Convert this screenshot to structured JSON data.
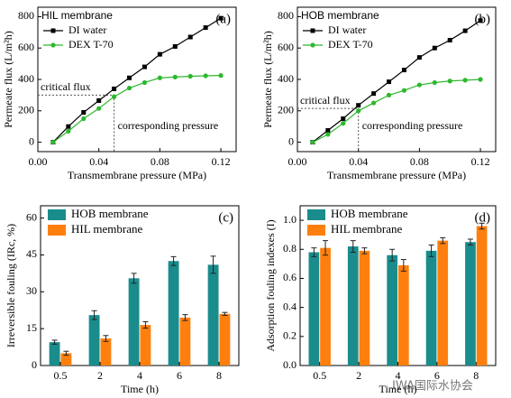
{
  "chart_data": [
    {
      "type": "line",
      "title": "HIL membrane",
      "panel_label": "(a)",
      "x_label": "Transmembrane pressure (MPa)",
      "y_label": "Permeate flux (L/m²h)",
      "x": [
        0.01,
        0.02,
        0.03,
        0.04,
        0.05,
        0.06,
        0.07,
        0.08,
        0.09,
        0.1,
        0.11,
        0.12
      ],
      "series": [
        {
          "name": "DI water",
          "color": "#000000",
          "marker": "square",
          "values": [
            0,
            100,
            190,
            265,
            340,
            410,
            480,
            560,
            610,
            670,
            730,
            790
          ]
        },
        {
          "name": "DEX T-70",
          "color": "#2db82d",
          "marker": "circle",
          "values": [
            0,
            70,
            150,
            215,
            290,
            345,
            380,
            410,
            415,
            420,
            423,
            425
          ]
        }
      ],
      "critical_point": [
        0.05,
        300
      ],
      "annotations": [
        "critical flux",
        "corresponding pressure"
      ],
      "xlim": [
        0,
        0.13
      ],
      "xticks": [
        {
          "value": 0,
          "label": "0.00"
        },
        {
          "value": 0.04,
          "label": "0.04"
        },
        {
          "value": 0.08,
          "label": "0.08"
        },
        {
          "value": 0.12,
          "label": "0.12"
        }
      ],
      "ylim": [
        -60,
        860
      ],
      "yticks": [
        0,
        200,
        400,
        600,
        800
      ]
    },
    {
      "type": "line",
      "title": "HOB membrane",
      "panel_label": "(b)",
      "x_label": "Transmembrane pressure (MPa)",
      "y_label": "Permeate flux (L/m²h)",
      "x": [
        0.01,
        0.02,
        0.03,
        0.04,
        0.05,
        0.06,
        0.07,
        0.08,
        0.09,
        0.1,
        0.11,
        0.12
      ],
      "series": [
        {
          "name": "DI water",
          "color": "#000000",
          "marker": "square",
          "values": [
            0,
            75,
            150,
            235,
            310,
            385,
            460,
            540,
            600,
            650,
            710,
            775
          ]
        },
        {
          "name": "DEX T-70",
          "color": "#2db82d",
          "marker": "circle",
          "values": [
            0,
            50,
            120,
            200,
            250,
            300,
            330,
            365,
            380,
            390,
            395,
            400
          ]
        }
      ],
      "critical_point": [
        0.04,
        215
      ],
      "annotations": [
        "critical flux",
        "corresponding pressure"
      ],
      "xlim": [
        0,
        0.13
      ],
      "xticks": [
        {
          "value": 0,
          "label": "0.00"
        },
        {
          "value": 0.04,
          "label": "0.04"
        },
        {
          "value": 0.08,
          "label": "0.08"
        },
        {
          "value": 0.12,
          "label": "0.12"
        }
      ],
      "ylim": [
        -60,
        860
      ],
      "yticks": [
        0,
        200,
        400,
        600,
        800
      ]
    },
    {
      "type": "bar",
      "panel_label": "(c)",
      "x_label": "Time (h)",
      "y_label": "Irreversible fouling (IRc, %)",
      "categories": [
        "0.5",
        "2",
        "4",
        "6",
        "8"
      ],
      "series": [
        {
          "name": "HOB membrane",
          "color": "#1a8c8c",
          "values": [
            9.5,
            20.5,
            35.5,
            42.5,
            41
          ],
          "errors": [
            0.8,
            1.8,
            2,
            1.8,
            3.5
          ]
        },
        {
          "name": "HIL membrane",
          "color": "#ff7f0e",
          "values": [
            5,
            11,
            16.5,
            19.5,
            21
          ],
          "errors": [
            0.8,
            1.2,
            1.3,
            1.2,
            0.6
          ]
        }
      ],
      "ylim": [
        0,
        65
      ],
      "yticks": [
        0,
        15,
        30,
        45,
        60
      ]
    },
    {
      "type": "bar",
      "panel_label": "(d)",
      "x_label": "Time (h)",
      "y_label": "Adsorption fouling indexes (I)",
      "categories": [
        "0.5",
        "2",
        "4",
        "6",
        "8"
      ],
      "series": [
        {
          "name": "HOB membrane",
          "color": "#1a8c8c",
          "values": [
            0.78,
            0.82,
            0.76,
            0.79,
            0.85
          ],
          "errors": [
            0.03,
            0.04,
            0.04,
            0.04,
            0.02
          ]
        },
        {
          "name": "HIL membrane",
          "color": "#ff7f0e",
          "values": [
            0.81,
            0.79,
            0.69,
            0.86,
            0.96
          ],
          "errors": [
            0.05,
            0.02,
            0.04,
            0.02,
            0.02
          ]
        }
      ],
      "ylim": [
        0,
        1.1
      ],
      "yticks": [
        {
          "value": 0,
          "label": "0.0"
        },
        {
          "value": 0.2,
          "label": "0.2"
        },
        {
          "value": 0.4,
          "label": "0.4"
        },
        {
          "value": 0.6,
          "label": "0.6"
        },
        {
          "value": 0.8,
          "label": "0.8"
        },
        {
          "value": 1.0,
          "label": "1.0"
        }
      ]
    }
  ],
  "watermark": "IWA国际水协会"
}
